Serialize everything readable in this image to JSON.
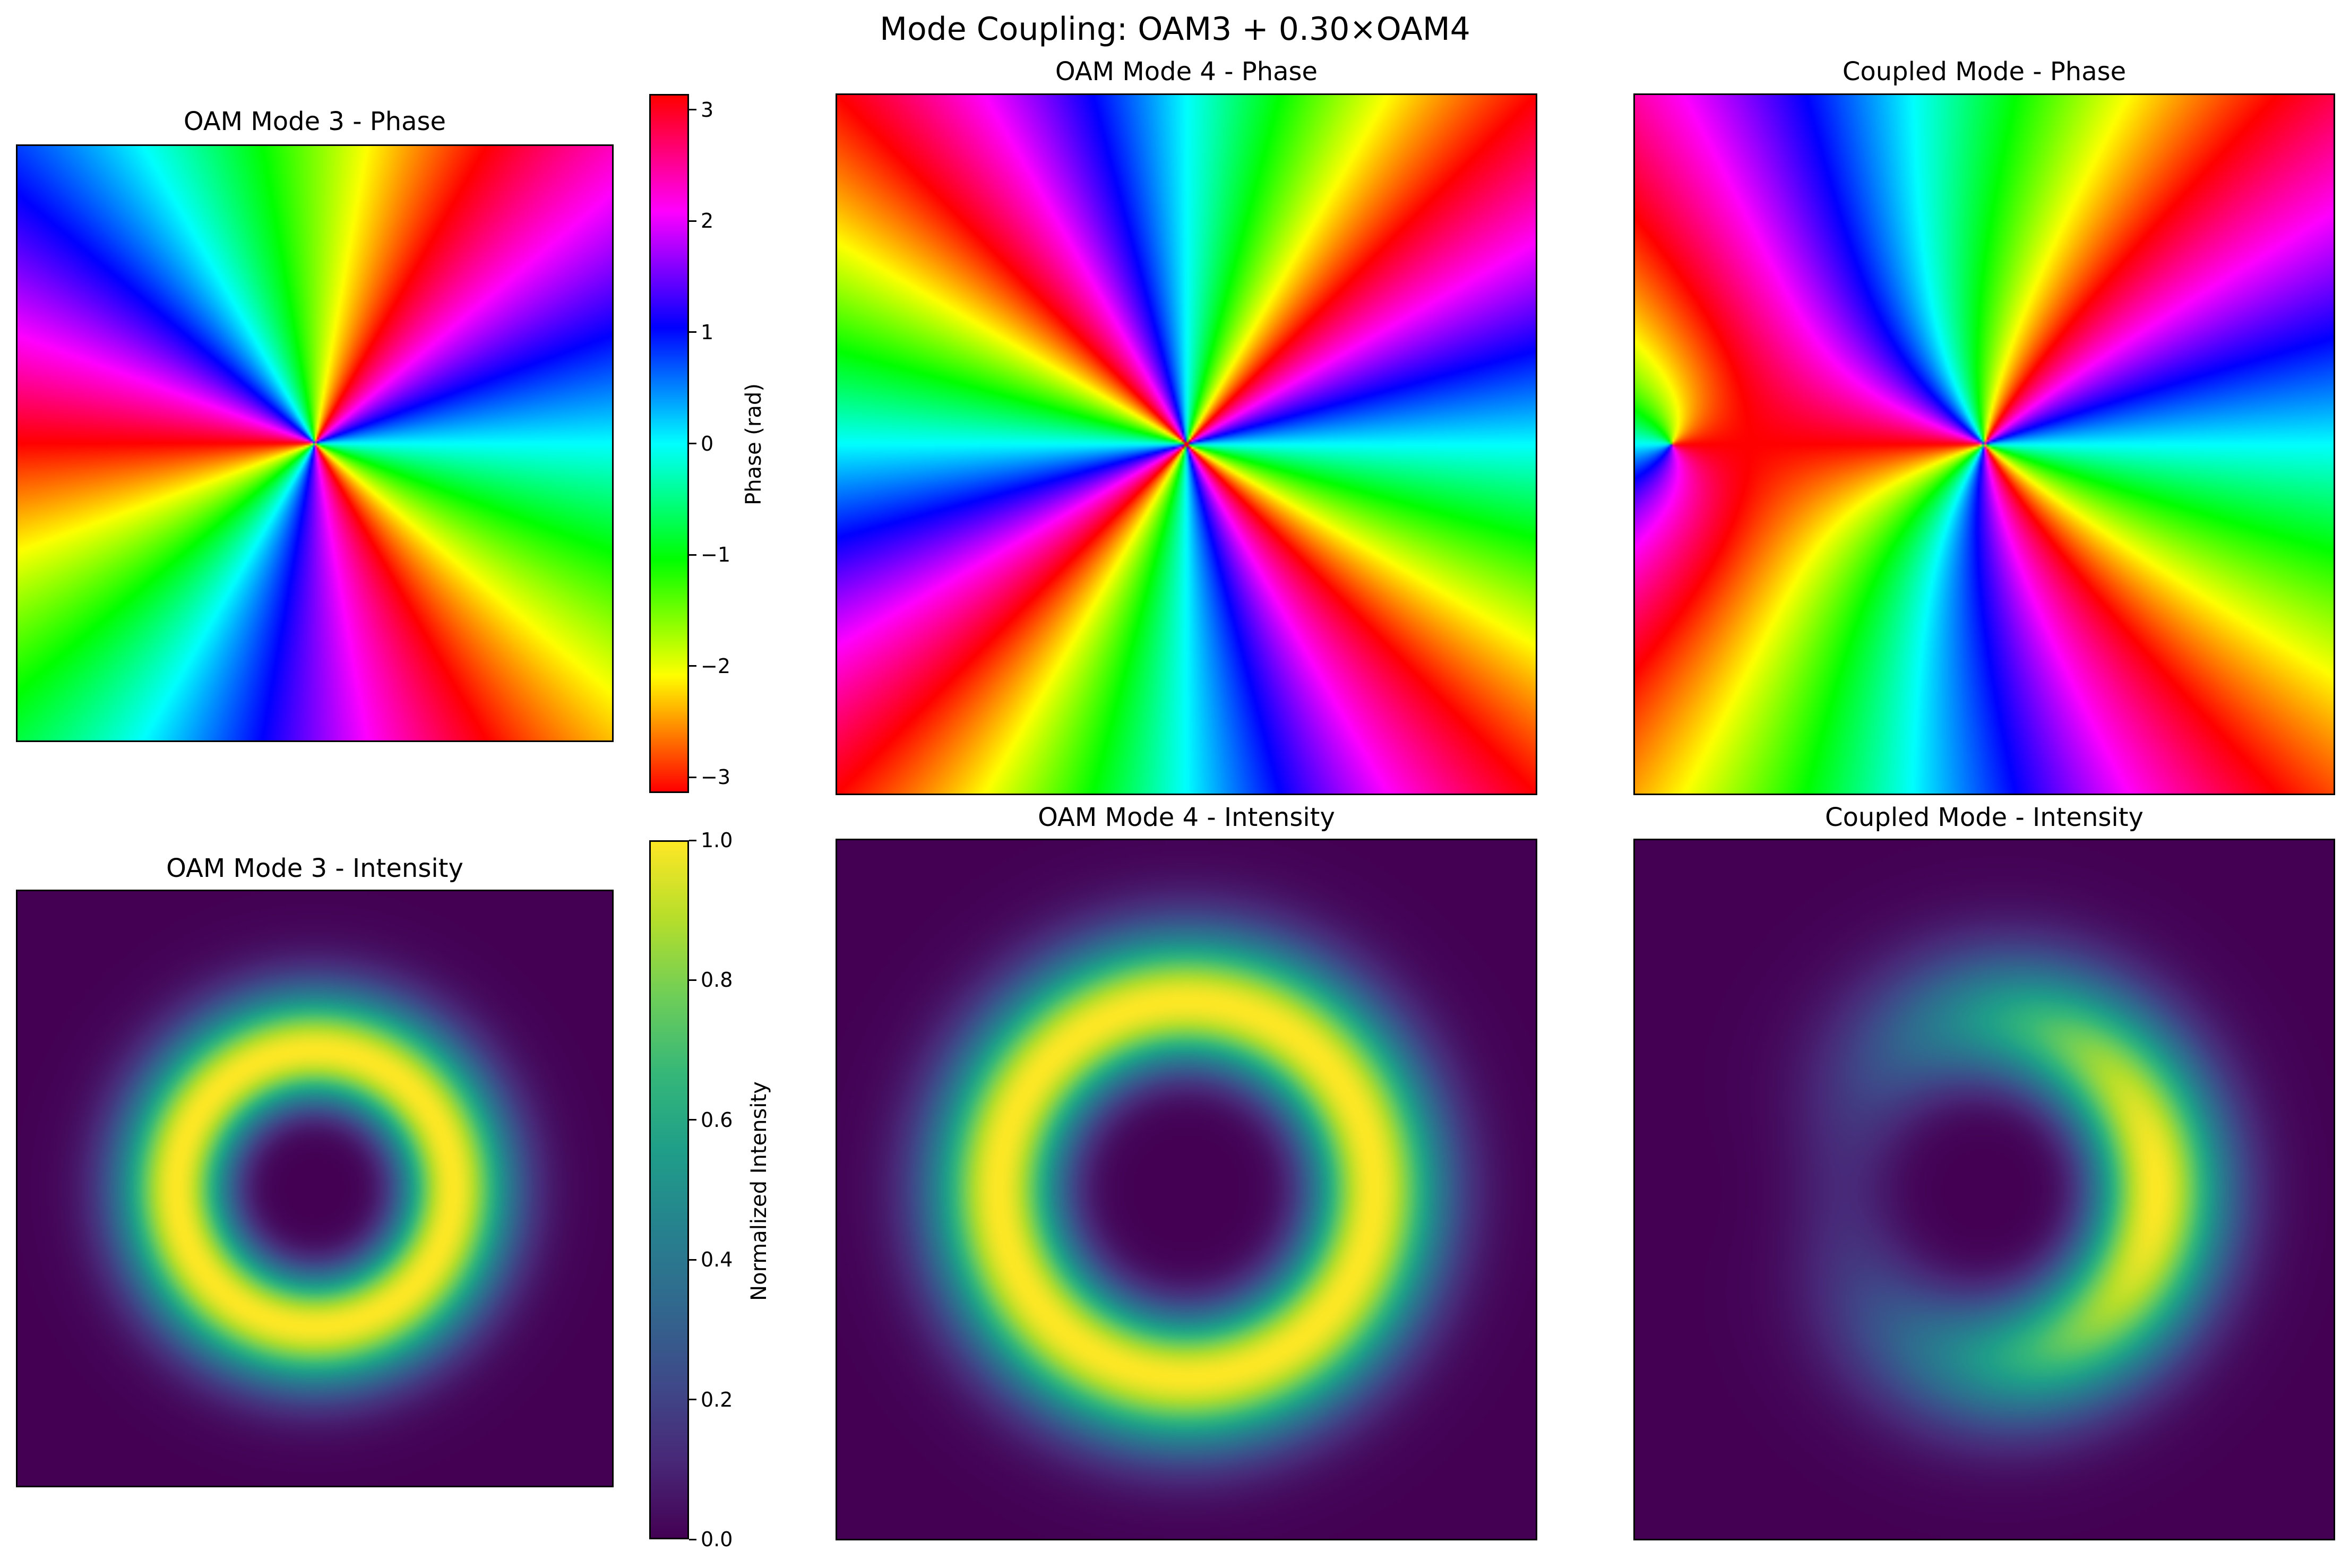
{
  "figure": {
    "suptitle": "Mode Coupling: OAM3 + 0.30×OAM4"
  },
  "chart_data": [
    {
      "type": "heatmap",
      "title": "OAM Mode 3 - Phase",
      "quantity": "phase",
      "mode": "oam3",
      "colormap": "hsv",
      "clim": [
        -3.14159,
        3.14159
      ],
      "axes_visible": false
    },
    {
      "type": "heatmap",
      "title": "OAM Mode 4 - Phase",
      "quantity": "phase",
      "mode": "oam4",
      "colormap": "hsv",
      "clim": [
        -3.14159,
        3.14159
      ],
      "axes_visible": false
    },
    {
      "type": "heatmap",
      "title": "Coupled Mode - Phase",
      "quantity": "phase",
      "mode": "coupled",
      "coupling_coefficient": 0.3,
      "colormap": "hsv",
      "clim": [
        -3.14159,
        3.14159
      ],
      "axes_visible": false
    },
    {
      "type": "heatmap",
      "title": "OAM Mode 3 - Intensity",
      "quantity": "intensity",
      "mode": "oam3",
      "colormap": "viridis",
      "clim": [
        0,
        1
      ],
      "axes_visible": false
    },
    {
      "type": "heatmap",
      "title": "OAM Mode 4 - Intensity",
      "quantity": "intensity",
      "mode": "oam4",
      "colormap": "viridis",
      "clim": [
        0,
        1
      ],
      "axes_visible": false
    },
    {
      "type": "heatmap",
      "title": "Coupled Mode - Intensity",
      "quantity": "intensity",
      "mode": "coupled",
      "coupling_coefficient": 0.3,
      "colormap": "viridis",
      "clim": [
        0,
        1
      ],
      "axes_visible": false
    }
  ],
  "colorbars": {
    "phase": {
      "label": "Phase (rad)",
      "colormap": "hsv",
      "range": [
        -3.14159,
        3.14159
      ],
      "ticks": [
        "3",
        "2",
        "1",
        "0",
        "−1",
        "−2",
        "−3"
      ],
      "tick_values": [
        3,
        2,
        1,
        0,
        -1,
        -2,
        -3
      ]
    },
    "intensity": {
      "label": "Normalized Intensity",
      "colormap": "viridis",
      "range": [
        0,
        1
      ],
      "ticks": [
        "1.0",
        "0.8",
        "0.6",
        "0.4",
        "0.2",
        "0.0"
      ],
      "tick_values": [
        1.0,
        0.8,
        0.6,
        0.4,
        0.2,
        0.0
      ]
    }
  }
}
